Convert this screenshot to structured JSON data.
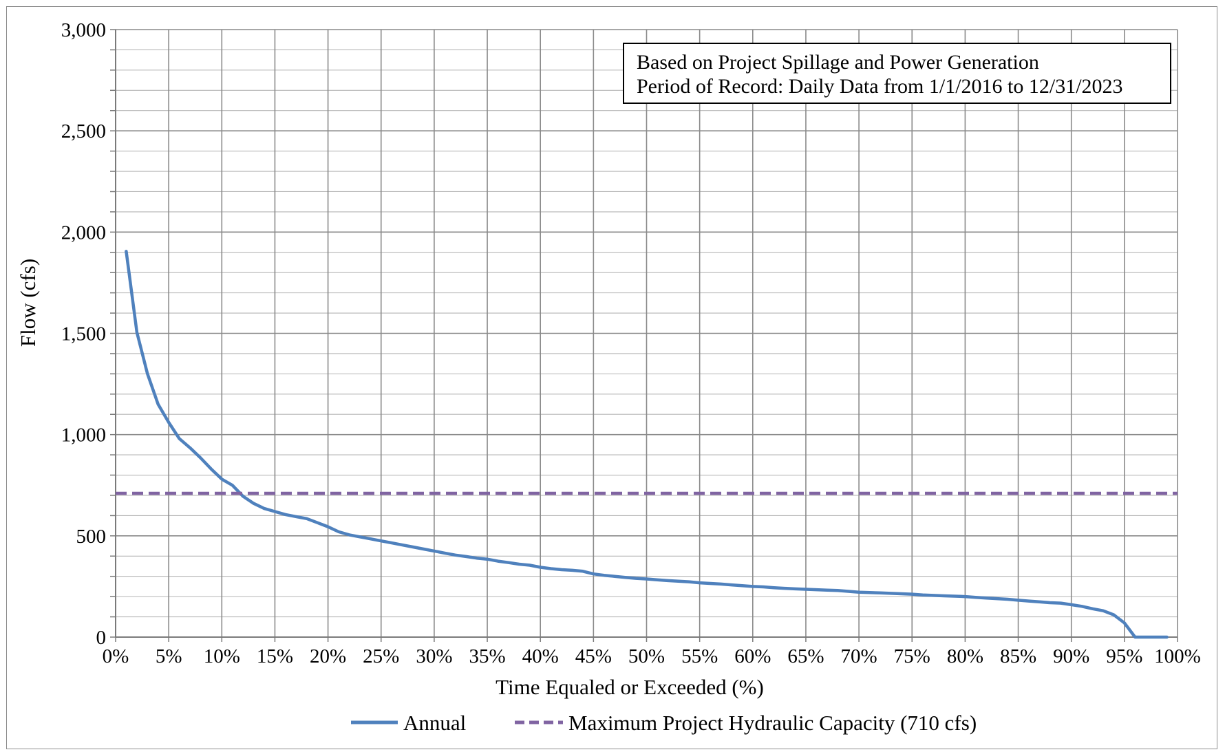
{
  "chart_data": {
    "type": "line",
    "title": "",
    "xlabel": "Time Equaled or Exceeded (%)",
    "ylabel": "Flow (cfs)",
    "xlim": [
      0,
      100
    ],
    "ylim": [
      0,
      3000
    ],
    "x_ticks": [
      "0%",
      "5%",
      "10%",
      "15%",
      "20%",
      "25%",
      "30%",
      "35%",
      "40%",
      "45%",
      "50%",
      "55%",
      "60%",
      "65%",
      "70%",
      "75%",
      "80%",
      "85%",
      "90%",
      "95%",
      "100%"
    ],
    "y_ticks": [
      "0",
      "500",
      "1,000",
      "1,500",
      "2,000",
      "2,500",
      "3,000"
    ],
    "grid": true,
    "legend_position": "bottom",
    "annotation": {
      "line1": "Based on Project Spillage and Power Generation",
      "line2": "Period of Record: Daily Data from 1/1/2016 to 12/31/2023"
    },
    "series": [
      {
        "name": "Annual",
        "color": "#4f81bd",
        "style": "solid",
        "x": [
          1,
          2,
          3,
          4,
          5,
          6,
          7,
          8,
          9,
          10,
          11,
          12,
          13,
          14,
          15,
          16,
          17,
          18,
          19,
          20,
          21,
          22,
          23,
          24,
          25,
          26,
          27,
          28,
          29,
          30,
          31,
          32,
          33,
          34,
          35,
          36,
          37,
          38,
          39,
          40,
          41,
          42,
          43,
          44,
          45,
          46,
          47,
          48,
          49,
          50,
          51,
          52,
          53,
          54,
          55,
          56,
          57,
          58,
          59,
          60,
          61,
          62,
          63,
          64,
          65,
          66,
          67,
          68,
          69,
          70,
          71,
          72,
          73,
          74,
          75,
          76,
          77,
          78,
          79,
          80,
          81,
          82,
          83,
          84,
          85,
          86,
          87,
          88,
          89,
          90,
          91,
          92,
          93,
          94,
          95,
          96,
          97,
          98,
          99
        ],
        "values": [
          1905,
          1505,
          1300,
          1150,
          1060,
          980,
          935,
          885,
          830,
          780,
          750,
          695,
          660,
          635,
          620,
          605,
          595,
          585,
          565,
          545,
          520,
          505,
          495,
          485,
          475,
          465,
          455,
          445,
          435,
          425,
          415,
          405,
          398,
          390,
          385,
          375,
          368,
          360,
          355,
          345,
          338,
          333,
          330,
          325,
          312,
          305,
          300,
          295,
          290,
          287,
          283,
          279,
          276,
          273,
          268,
          265,
          262,
          258,
          254,
          250,
          248,
          244,
          241,
          238,
          236,
          234,
          232,
          230,
          226,
          222,
          220,
          218,
          216,
          214,
          212,
          208,
          206,
          204,
          202,
          200,
          196,
          193,
          190,
          187,
          182,
          178,
          174,
          170,
          168,
          160,
          152,
          140,
          130,
          110,
          70,
          0,
          0,
          0,
          0
        ]
      },
      {
        "name": "Maximum Project Hydraulic Capacity (710 cfs)",
        "color": "#8064a2",
        "style": "dashed",
        "x": [
          0,
          100
        ],
        "values": [
          710,
          710
        ]
      }
    ]
  }
}
